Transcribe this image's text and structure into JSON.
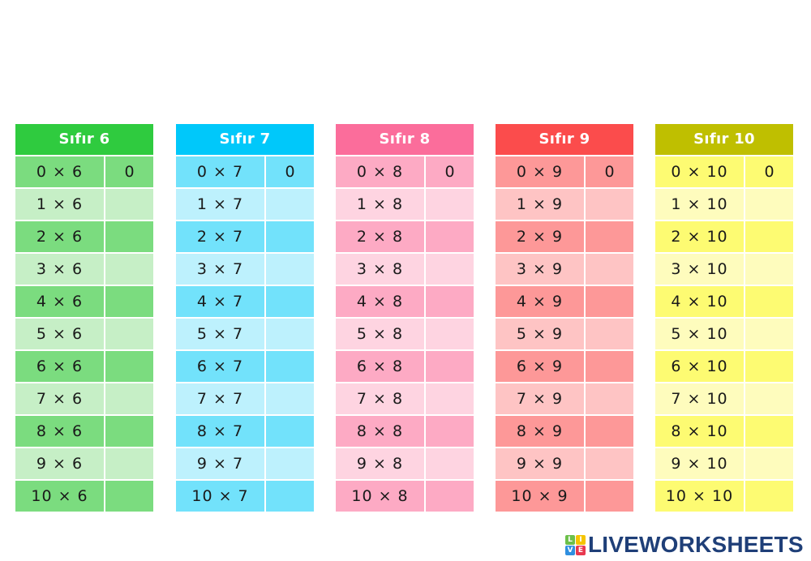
{
  "worksheet": {
    "tables": [
      {
        "title": "Sıfır 6",
        "colors": {
          "header": "#2fcb3f",
          "dark": "#7bdc7f",
          "light": "#c6efc6"
        },
        "rows": [
          {
            "question": "0 × 6",
            "answer": "0"
          },
          {
            "question": "1 × 6",
            "answer": ""
          },
          {
            "question": "2 × 6",
            "answer": ""
          },
          {
            "question": "3 × 6",
            "answer": ""
          },
          {
            "question": "4 × 6",
            "answer": ""
          },
          {
            "question": "5 × 6",
            "answer": ""
          },
          {
            "question": "6 × 6",
            "answer": ""
          },
          {
            "question": "7 × 6",
            "answer": ""
          },
          {
            "question": "8 × 6",
            "answer": ""
          },
          {
            "question": "9 × 6",
            "answer": ""
          },
          {
            "question": "10 × 6",
            "answer": ""
          }
        ]
      },
      {
        "title": "Sıfır 7",
        "colors": {
          "header": "#00c8fa",
          "dark": "#72e2fb",
          "light": "#bdf1fd"
        },
        "rows": [
          {
            "question": "0 × 7",
            "answer": "0"
          },
          {
            "question": "1 × 7",
            "answer": ""
          },
          {
            "question": "2 × 7",
            "answer": ""
          },
          {
            "question": "3 × 7",
            "answer": ""
          },
          {
            "question": "4 × 7",
            "answer": ""
          },
          {
            "question": "5 × 7",
            "answer": ""
          },
          {
            "question": "6 × 7",
            "answer": ""
          },
          {
            "question": "7 × 7",
            "answer": ""
          },
          {
            "question": "8 × 7",
            "answer": ""
          },
          {
            "question": "9 × 7",
            "answer": ""
          },
          {
            "question": "10 × 7",
            "answer": ""
          }
        ]
      },
      {
        "title": "Sıfır 8",
        "colors": {
          "header": "#fb6d9b",
          "dark": "#fdaac4",
          "light": "#fed4e1"
        },
        "rows": [
          {
            "question": "0 × 8",
            "answer": "0"
          },
          {
            "question": "1 × 8",
            "answer": ""
          },
          {
            "question": "2 × 8",
            "answer": ""
          },
          {
            "question": "3 × 8",
            "answer": ""
          },
          {
            "question": "4 × 8",
            "answer": ""
          },
          {
            "question": "5 × 8",
            "answer": ""
          },
          {
            "question": "6 × 8",
            "answer": ""
          },
          {
            "question": "7 × 8",
            "answer": ""
          },
          {
            "question": "8 × 8",
            "answer": ""
          },
          {
            "question": "9 × 8",
            "answer": ""
          },
          {
            "question": "10 × 8",
            "answer": ""
          }
        ]
      },
      {
        "title": "Sıfır 9",
        "colors": {
          "header": "#fb4c4c",
          "dark": "#fd9898",
          "light": "#fec4c4"
        },
        "rows": [
          {
            "question": "0 × 9",
            "answer": "0"
          },
          {
            "question": "1 × 9",
            "answer": ""
          },
          {
            "question": "2 × 9",
            "answer": ""
          },
          {
            "question": "3 × 9",
            "answer": ""
          },
          {
            "question": "4 × 9",
            "answer": ""
          },
          {
            "question": "5 × 9",
            "answer": ""
          },
          {
            "question": "6 × 9",
            "answer": ""
          },
          {
            "question": "7 × 9",
            "answer": ""
          },
          {
            "question": "8 × 9",
            "answer": ""
          },
          {
            "question": "9 × 9",
            "answer": ""
          },
          {
            "question": "10 × 9",
            "answer": ""
          }
        ]
      },
      {
        "title": "Sıfır 10",
        "colors": {
          "header": "#bfbf00",
          "dark": "#fdfb72",
          "light": "#fefcbd"
        },
        "rows": [
          {
            "question": "0 × 10",
            "answer": "0"
          },
          {
            "question": "1 × 10",
            "answer": ""
          },
          {
            "question": "2 × 10",
            "answer": ""
          },
          {
            "question": "3 × 10",
            "answer": ""
          },
          {
            "question": "4 × 10",
            "answer": ""
          },
          {
            "question": "5 × 10",
            "answer": ""
          },
          {
            "question": "6 × 10",
            "answer": ""
          },
          {
            "question": "7 × 10",
            "answer": ""
          },
          {
            "question": "8 × 10",
            "answer": ""
          },
          {
            "question": "9 × 10",
            "answer": ""
          },
          {
            "question": "10 × 10",
            "answer": ""
          }
        ]
      }
    ]
  },
  "footer": {
    "logo": {
      "blocks": [
        {
          "letter": "L",
          "color": "#6cc04a"
        },
        {
          "letter": "I",
          "color": "#f5c400"
        },
        {
          "letter": "V",
          "color": "#2f8fe0"
        },
        {
          "letter": "E",
          "color": "#e8384f"
        }
      ],
      "text": "LIVEWORKSHEETS"
    }
  }
}
